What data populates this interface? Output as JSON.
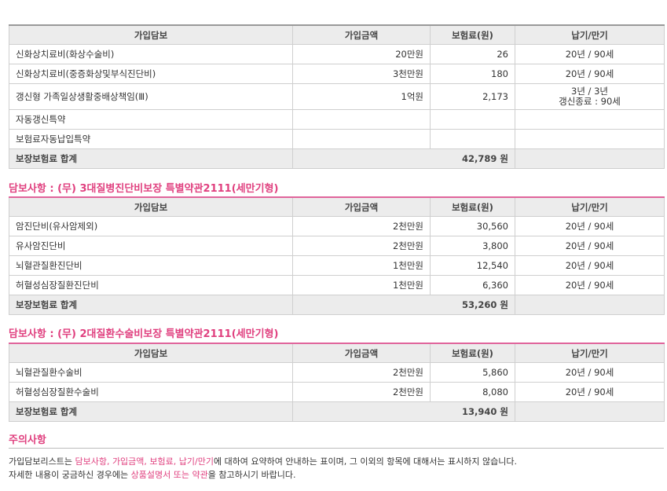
{
  "columns": {
    "coverage": "가입담보",
    "amount": "가입금액",
    "premium": "보험료(원)",
    "term": "납기/만기"
  },
  "section1": {
    "rows": [
      {
        "name": "신화상치료비(화상수술비)",
        "amount": "20만원",
        "premium": "26",
        "term": "20년 / 90세"
      },
      {
        "name": "신화상치료비(중증화상및부식진단비)",
        "amount": "3천만원",
        "premium": "180",
        "term": "20년 / 90세"
      },
      {
        "name": "갱신형 가족일상생활중배상책임(Ⅲ)",
        "amount": "1억원",
        "premium": "2,173",
        "term": "3년 / 3년",
        "term2": "갱신종료 : 90세"
      },
      {
        "name": "자동갱신특약",
        "amount": "",
        "premium": "",
        "term": ""
      },
      {
        "name": "보험료자동납입특약",
        "amount": "",
        "premium": "",
        "term": ""
      }
    ],
    "total_label": "보장보험료 합계",
    "total": "42,789 원"
  },
  "section2": {
    "title": "담보사항 : (무) 3대질병진단비보장 특별약관2111(세만기형)",
    "rows": [
      {
        "name": "암진단비(유사암제외)",
        "amount": "2천만원",
        "premium": "30,560",
        "term": "20년 / 90세"
      },
      {
        "name": "유사암진단비",
        "amount": "2천만원",
        "premium": "3,800",
        "term": "20년 / 90세"
      },
      {
        "name": "뇌혈관질환진단비",
        "amount": "1천만원",
        "premium": "12,540",
        "term": "20년 / 90세"
      },
      {
        "name": "허혈성심장질환진단비",
        "amount": "1천만원",
        "premium": "6,360",
        "term": "20년 / 90세"
      }
    ],
    "total_label": "보장보험료 합계",
    "total": "53,260 원"
  },
  "section3": {
    "title": "담보사항 : (무) 2대질환수술비보장 특별약관2111(세만기형)",
    "rows": [
      {
        "name": "뇌혈관질환수술비",
        "amount": "2천만원",
        "premium": "5,860",
        "term": "20년 / 90세"
      },
      {
        "name": "허혈성심장질환수술비",
        "amount": "2천만원",
        "premium": "8,080",
        "term": "20년 / 90세"
      }
    ],
    "total_label": "보장보험료 합계",
    "total": "13,940 원"
  },
  "notice": {
    "title": "주의사항",
    "line1": {
      "a": "가입담보리스트는 ",
      "b": "담보사항, 가입금액, 보험료, 납기/만기",
      "c": "에 대하여 요약하여 안내하는 표이며, 그 이외의 항목에 대해서는 표시하지 않습니다."
    },
    "line2": {
      "a": "자세한 내용이 궁금하신 경우에는 ",
      "b": "상품설명서 또는 약관",
      "c": "을 참고하시기 바랍니다."
    }
  },
  "colors": {
    "accent": "#e0407f",
    "header_bg": "#ececec",
    "border": "#cfcfcf"
  }
}
